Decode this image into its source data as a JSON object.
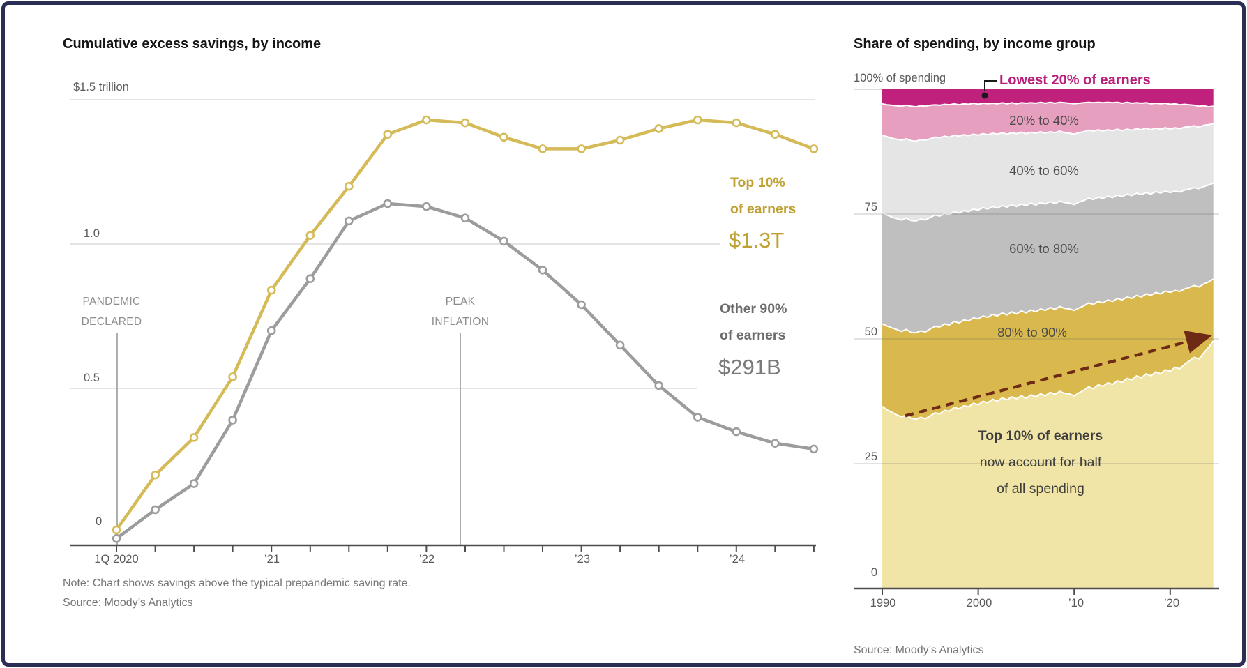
{
  "left_chart": {
    "title": "Cumulative excess savings, by income",
    "y_axis": {
      "top_label": "$1.5 trillion",
      "mid1": "1.0",
      "mid2": "0.5",
      "zero": "0"
    },
    "x_labels": [
      "1Q 2020",
      "’21",
      "’22",
      "’23",
      "’24"
    ],
    "annotations": {
      "pandemic": [
        "PANDEMIC",
        "DECLARED"
      ],
      "peak": [
        "PEAK",
        "INFLATION"
      ]
    },
    "series_labels": {
      "top10_line1": "Top 10%",
      "top10_line2": "of earners",
      "top10_value": "$1.3T",
      "other90_line1": "Other 90%",
      "other90_line2": "of earners",
      "other90_value": "$291B"
    },
    "note": "Note: Chart shows savings above the typical prepandemic saving rate.",
    "source": "Source: Moody’s Analytics"
  },
  "right_chart": {
    "title": "Share of spending, by income group",
    "y_top_label": "100% of spending",
    "y_labels": {
      "l75": "75",
      "l50": "50",
      "l25": "25",
      "l0": "0"
    },
    "x_labels": [
      "1990",
      "2000",
      "’10",
      "’20"
    ],
    "callout": "Lowest 20% of earners",
    "band_labels": {
      "b20_40": "20% to 40%",
      "b40_60": "40% to 60%",
      "b60_80": "60% to 80%",
      "b80_90": "80% to 90%"
    },
    "annotation": [
      "Top 10% of earners",
      "now account for half",
      "of all spending"
    ],
    "source": "Source: Moody’s Analytics"
  },
  "chart_data": [
    {
      "type": "line",
      "title": "Cumulative excess savings, by income",
      "ylabel": "trillion USD",
      "ylim": [
        0,
        1.5
      ],
      "x": [
        "1Q 2020",
        "2Q 2020",
        "3Q 2020",
        "4Q 2020",
        "1Q 2021",
        "2Q 2021",
        "3Q 2021",
        "4Q 2021",
        "1Q 2022",
        "2Q 2022",
        "3Q 2022",
        "4Q 2022",
        "1Q 2023",
        "2Q 2023",
        "3Q 2023",
        "4Q 2023",
        "1Q 2024",
        "2Q 2024",
        "3Q 2024"
      ],
      "series": [
        {
          "name": "Top 10% of earners",
          "color": "#d5ba58",
          "end_label": "$1.3T",
          "values": [
            0.01,
            0.2,
            0.33,
            0.54,
            0.84,
            1.03,
            1.2,
            1.38,
            1.43,
            1.42,
            1.37,
            1.33,
            1.33,
            1.36,
            1.4,
            1.43,
            1.42,
            1.38,
            1.33
          ]
        },
        {
          "name": "Other 90% of earners",
          "color": "#9c9c9c",
          "end_label": "$291B",
          "values": [
            -0.02,
            0.08,
            0.17,
            0.39,
            0.7,
            0.88,
            1.08,
            1.14,
            1.13,
            1.09,
            1.01,
            0.91,
            0.79,
            0.65,
            0.51,
            0.4,
            0.35,
            0.31,
            0.29
          ]
        }
      ],
      "annotations": [
        {
          "text": "PANDEMIC DECLARED",
          "x": "1Q 2020"
        },
        {
          "text": "PEAK INFLATION",
          "x": "2Q 2022"
        }
      ],
      "gridlines": [
        0.5,
        1.0,
        1.5
      ]
    },
    {
      "type": "area",
      "stacked": true,
      "title": "Share of spending, by income group",
      "ylim": [
        0,
        100
      ],
      "x_start_year": 1990,
      "x_step_years": 0.5,
      "x_tick_years": [
        1990,
        2000,
        2010,
        2020
      ],
      "gridlines": [
        25,
        50,
        75
      ],
      "bands_bottom_to_top": [
        {
          "name": "Top 10% of earners",
          "color": "#f0e4a6"
        },
        {
          "name": "80% to 90%",
          "color": "#d9b94e"
        },
        {
          "name": "60% to 80%",
          "color": "#bfbfbf"
        },
        {
          "name": "40% to 60%",
          "color": "#e5e5e5"
        },
        {
          "name": "20% to 40%",
          "color": "#e69fbe"
        },
        {
          "name": "Lowest 20% of earners",
          "color": "#c0217c"
        }
      ],
      "cumulative_boundaries": {
        "top10_top": [
          36.5,
          35.8,
          35.3,
          34.8,
          34.4,
          34.7,
          34.1,
          33.9,
          34.3,
          34.0,
          34.6,
          35.2,
          35.0,
          35.7,
          35.5,
          36.3,
          36.0,
          36.6,
          36.4,
          37.1,
          36.8,
          37.5,
          37.2,
          37.9,
          37.5,
          38.2,
          37.8,
          38.4,
          38.0,
          38.6,
          38.1,
          38.8,
          38.4,
          39.0,
          38.6,
          39.3,
          38.9,
          39.5,
          39.1,
          39.0,
          38.6,
          39.2,
          39.7,
          40.4,
          40.0,
          40.8,
          40.5,
          41.2,
          40.9,
          41.6,
          41.3,
          42.1,
          41.8,
          42.6,
          42.2,
          43.0,
          42.6,
          43.4,
          43.0,
          43.8,
          43.5,
          44.3,
          44.0,
          44.9,
          45.6,
          46.3,
          46.0,
          47.2,
          48.3,
          49.6
        ],
        "p80_90_top": [
          53.0,
          52.6,
          52.2,
          51.9,
          51.5,
          51.9,
          51.3,
          51.2,
          51.6,
          51.4,
          52.0,
          52.5,
          52.4,
          53.0,
          52.8,
          53.5,
          53.2,
          53.8,
          53.6,
          54.2,
          54.0,
          54.6,
          54.3,
          54.9,
          54.6,
          55.2,
          54.8,
          55.4,
          55.0,
          55.6,
          55.2,
          55.8,
          55.4,
          56.0,
          55.7,
          56.3,
          55.9,
          56.5,
          56.1,
          56.0,
          55.7,
          56.2,
          56.6,
          57.2,
          56.9,
          57.5,
          57.2,
          57.8,
          57.5,
          58.1,
          57.8,
          58.4,
          58.1,
          58.7,
          58.4,
          59.0,
          58.7,
          59.3,
          59.0,
          59.6,
          59.3,
          59.7,
          59.5,
          60.0,
          60.3,
          60.7,
          60.4,
          61.0,
          61.4,
          62.0
        ],
        "p60_80_top": [
          75.2,
          74.8,
          74.4,
          74.1,
          73.8,
          74.2,
          73.7,
          73.6,
          74.0,
          73.8,
          74.3,
          74.8,
          74.6,
          75.1,
          74.9,
          75.5,
          75.2,
          75.7,
          75.5,
          76.0,
          75.8,
          76.3,
          76.0,
          76.5,
          76.2,
          76.7,
          76.4,
          76.9,
          76.5,
          77.0,
          76.7,
          77.2,
          76.8,
          77.3,
          77.0,
          77.5,
          77.1,
          77.6,
          77.3,
          77.2,
          76.9,
          77.4,
          77.7,
          78.2,
          77.9,
          78.4,
          78.1,
          78.6,
          78.3,
          78.8,
          78.5,
          79.0,
          78.7,
          79.2,
          78.9,
          79.3,
          79.0,
          79.5,
          79.2,
          79.6,
          79.3,
          79.6,
          79.4,
          79.8,
          80.0,
          80.3,
          80.1,
          80.5,
          80.8,
          81.2
        ],
        "p40_60_top": [
          90.8,
          90.5,
          90.2,
          90.0,
          89.8,
          90.1,
          89.7,
          89.6,
          89.9,
          89.8,
          90.1,
          90.4,
          90.3,
          90.6,
          90.4,
          90.8,
          90.6,
          90.9,
          90.7,
          91.0,
          90.8,
          91.1,
          90.9,
          91.2,
          91.0,
          91.3,
          91.0,
          91.3,
          91.1,
          91.4,
          91.1,
          91.4,
          91.2,
          91.5,
          91.2,
          91.5,
          91.3,
          91.6,
          91.3,
          91.2,
          91.0,
          91.3,
          91.5,
          91.8,
          91.6,
          91.9,
          91.6,
          91.9,
          91.7,
          92.0,
          91.7,
          92.0,
          91.8,
          92.1,
          91.9,
          92.2,
          91.9,
          92.2,
          92.0,
          92.3,
          92.0,
          92.3,
          92.1,
          92.4,
          92.5,
          92.7,
          92.4,
          92.8,
          92.9,
          93.1
        ],
        "p20_40_top": [
          97.1,
          96.9,
          96.8,
          96.7,
          96.6,
          96.8,
          96.6,
          96.5,
          96.7,
          96.6,
          96.8,
          96.9,
          96.8,
          97.0,
          96.9,
          97.1,
          96.9,
          97.1,
          97.0,
          97.2,
          97.0,
          97.2,
          97.1,
          97.2,
          97.1,
          97.3,
          97.1,
          97.3,
          97.1,
          97.3,
          97.2,
          97.3,
          97.2,
          97.4,
          97.2,
          97.4,
          97.2,
          97.4,
          97.3,
          97.2,
          97.1,
          97.2,
          97.3,
          97.4,
          97.3,
          97.4,
          97.3,
          97.4,
          97.3,
          97.4,
          97.2,
          97.4,
          97.2,
          97.3,
          97.2,
          97.3,
          97.1,
          97.2,
          97.1,
          97.2,
          97.0,
          97.1,
          96.9,
          97.0,
          96.9,
          96.8,
          96.6,
          96.7,
          96.5,
          96.6
        ]
      },
      "trend_arrow": {
        "from_year": 1992.4,
        "from_pct": 34.6,
        "to_year": 2023.5,
        "to_pct": 50.3,
        "color": "#6e2a15"
      }
    }
  ]
}
